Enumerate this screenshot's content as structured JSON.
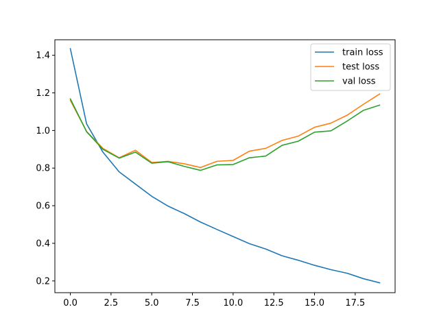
{
  "chart_data": {
    "type": "line",
    "title": "",
    "xlabel": "",
    "ylabel": "",
    "xlim": [
      -0.95,
      19.95
    ],
    "ylim": [
      0.1375,
      1.4825
    ],
    "x_ticks": [
      0.0,
      2.5,
      5.0,
      7.5,
      10.0,
      12.5,
      15.0,
      17.5
    ],
    "x_tick_labels": [
      "0.0",
      "2.5",
      "5.0",
      "7.5",
      "10.0",
      "12.5",
      "15.0",
      "17.5"
    ],
    "y_ticks": [
      0.2,
      0.4,
      0.6,
      0.8,
      1.0,
      1.2,
      1.4
    ],
    "y_tick_labels": [
      "0.2",
      "0.4",
      "0.6",
      "0.8",
      "1.0",
      "1.2",
      "1.4"
    ],
    "grid": false,
    "legend_position": "top-right",
    "x": [
      0,
      1,
      2,
      3,
      4,
      5,
      6,
      7,
      8,
      9,
      10,
      11,
      12,
      13,
      14,
      15,
      16,
      17,
      18,
      19
    ],
    "series": [
      {
        "name": "train loss",
        "color": "#1f77b4",
        "values": [
          1.435,
          1.035,
          0.885,
          0.78,
          0.715,
          0.65,
          0.598,
          0.558,
          0.513,
          0.474,
          0.436,
          0.398,
          0.37,
          0.334,
          0.31,
          0.283,
          0.26,
          0.241,
          0.212,
          0.19
        ]
      },
      {
        "name": "test loss",
        "color": "#ff7f0e",
        "values": [
          1.16,
          0.995,
          0.905,
          0.855,
          0.895,
          0.83,
          0.836,
          0.823,
          0.803,
          0.836,
          0.841,
          0.89,
          0.905,
          0.947,
          0.97,
          1.017,
          1.039,
          1.081,
          1.139,
          1.194
        ]
      },
      {
        "name": "val loss",
        "color": "#2ca02c",
        "values": [
          1.168,
          0.993,
          0.9,
          0.853,
          0.885,
          0.826,
          0.834,
          0.809,
          0.788,
          0.817,
          0.819,
          0.855,
          0.864,
          0.921,
          0.943,
          0.991,
          0.998,
          1.05,
          1.107,
          1.135
        ]
      }
    ]
  }
}
